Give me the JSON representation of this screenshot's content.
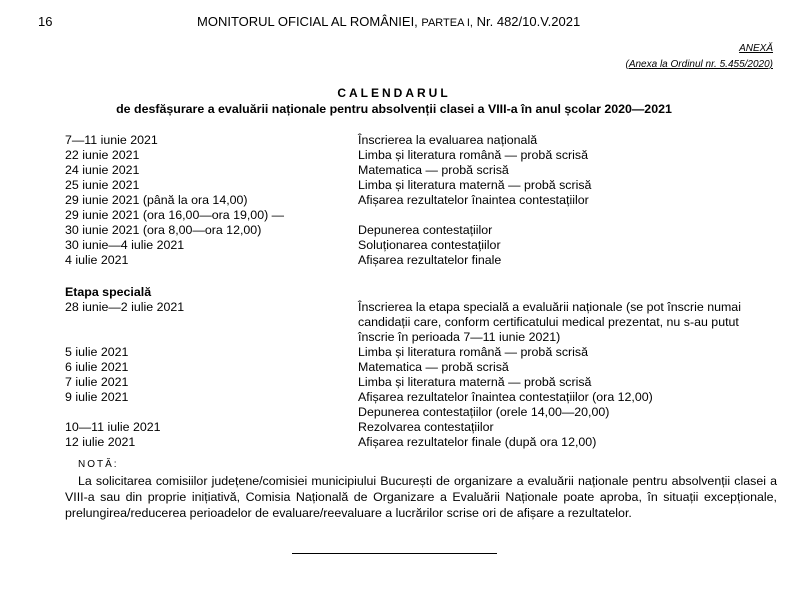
{
  "header": {
    "page_number": "16",
    "publication": "MONITORUL OFICIAL AL ROMÂNIEI,",
    "part": "PARTEA I,",
    "issue": "Nr. 482/10.V.2021"
  },
  "annex": {
    "label": "ANEXĂ",
    "reference": "(Anexa la Ordinul nr. 5.455/2020)"
  },
  "title": "CALENDARUL",
  "subtitle": "de desfășurare a evaluării naționale pentru absolvenții clasei a VIII-a în anul școlar 2020—2021",
  "main_schedule": [
    {
      "date": "7—11 iunie 2021",
      "event": "Înscrierea la evaluarea națională"
    },
    {
      "date": "22 iunie 2021",
      "event": "Limba și literatura română — probă scrisă"
    },
    {
      "date": "24 iunie 2021",
      "event": "Matematica — probă scrisă"
    },
    {
      "date": "25 iunie 2021",
      "event": "Limba și literatura maternă — probă scrisă"
    },
    {
      "date": "29 iunie 2021 (până la ora 14,00)",
      "event": "Afișarea rezultatelor înaintea contestațiilor"
    },
    {
      "date": "29 iunie 2021 (ora 16,00—ora 19,00) —",
      "event": ""
    },
    {
      "date": "30 iunie 2021 (ora 8,00—ora 12,00)",
      "event": "Depunerea contestațiilor"
    },
    {
      "date": "30 iunie—4 iulie 2021",
      "event": "Soluționarea contestațiilor"
    },
    {
      "date": "4 iulie 2021",
      "event": "Afișarea rezultatelor finale"
    }
  ],
  "special_stage": {
    "heading": "Etapa specială",
    "rows": [
      {
        "date": "28 iunie—2 iulie 2021",
        "event": "Înscrierea la etapa specială a evaluării naționale (se pot înscrie numai candidații care, conform certificatului medical prezentat, nu s-au putut înscrie în perioada 7—11 iunie 2021)"
      },
      {
        "date": "5 iulie 2021",
        "event": "Limba și literatura română — probă scrisă"
      },
      {
        "date": "6 iulie 2021",
        "event": "Matematica — probă scrisă"
      },
      {
        "date": "7 iulie 2021",
        "event": "Limba și literatura maternă — probă scrisă"
      },
      {
        "date": "9 iulie 2021",
        "event": "Afișarea rezultatelor înaintea contestațiilor (ora 12,00)"
      },
      {
        "date": "",
        "event": "Depunerea contestațiilor (orele 14,00—20,00)"
      },
      {
        "date": "10—11 iulie 2021",
        "event": "Rezolvarea contestațiilor"
      },
      {
        "date": "12 iulie 2021",
        "event": "Afișarea rezultatelor finale (după ora 12,00)"
      }
    ]
  },
  "note": {
    "label": "NOTĂ:",
    "text": "La solicitarea comisiilor județene/comisiei municipiului București de organizare a evaluării naționale pentru absolvenții clasei a VIII-a sau din proprie inițiativă, Comisia Națională de Organizare a Evaluării Naționale poate aproba, în situații excepționale, prelungirea/reducerea perioadelor de evaluare/reevaluare a lucrărilor scrise ori de afișare a rezultatelor."
  }
}
